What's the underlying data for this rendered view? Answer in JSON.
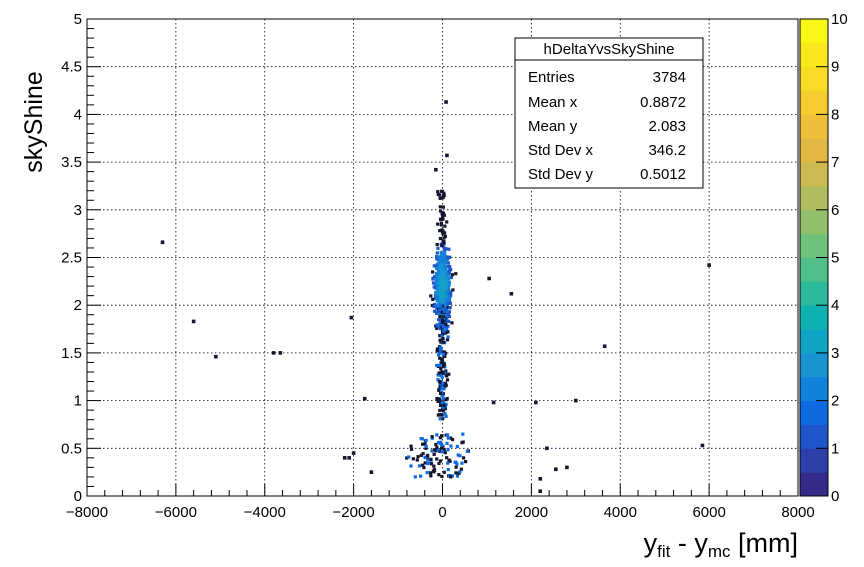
{
  "chart_data": {
    "type": "scatter",
    "title": "",
    "xlabel": {
      "main": "y",
      "sub1": "fit",
      "mid": " - y",
      "sub2": "mc",
      "unit": " [mm]"
    },
    "ylabel": "skyShine",
    "xlim": [
      -8000,
      8000
    ],
    "ylim": [
      0,
      5
    ],
    "zlim": [
      0,
      10
    ],
    "x_ticks": [
      -8000,
      -6000,
      -4000,
      -2000,
      0,
      2000,
      4000,
      6000,
      8000
    ],
    "y_ticks": [
      0,
      0.5,
      1,
      1.5,
      2,
      2.5,
      3,
      3.5,
      4,
      4.5,
      5
    ],
    "z_ticks": [
      0,
      1,
      2,
      3,
      4,
      5,
      6,
      7,
      8,
      9,
      10
    ],
    "x_tick_labels": [
      "−8000",
      "−6000",
      "−4000",
      "−2000",
      "0",
      "2000",
      "4000",
      "6000",
      "8000"
    ],
    "y_tick_labels": [
      "0",
      "0.5",
      "1",
      "1.5",
      "2",
      "2.5",
      "3",
      "3.5",
      "4",
      "4.5",
      "5"
    ],
    "z_tick_labels": [
      "0",
      "1",
      "2",
      "3",
      "4",
      "5",
      "6",
      "7",
      "8",
      "9",
      "10"
    ],
    "grid": true,
    "outliers": [
      {
        "x": -6300,
        "y": 2.66
      },
      {
        "x": -5600,
        "y": 1.83
      },
      {
        "x": -5100,
        "y": 1.46
      },
      {
        "x": -3800,
        "y": 1.5
      },
      {
        "x": -3650,
        "y": 1.5
      },
      {
        "x": -2050,
        "y": 1.87
      },
      {
        "x": -1750,
        "y": 1.02
      },
      {
        "x": 80,
        "y": 4.13
      },
      {
        "x": 100,
        "y": 3.57
      },
      {
        "x": -150,
        "y": 3.42
      },
      {
        "x": 1050,
        "y": 2.28
      },
      {
        "x": 1550,
        "y": 2.12
      },
      {
        "x": 1150,
        "y": 0.98
      },
      {
        "x": 2100,
        "y": 0.98
      },
      {
        "x": 3000,
        "y": 1.0
      },
      {
        "x": 3650,
        "y": 1.57
      },
      {
        "x": 6000,
        "y": 2.42
      },
      {
        "x": 5850,
        "y": 0.53
      },
      {
        "x": -2200,
        "y": 0.4
      },
      {
        "x": -2100,
        "y": 0.4
      },
      {
        "x": 2200,
        "y": 0.18
      },
      {
        "x": 2350,
        "y": 0.5
      },
      {
        "x": 2550,
        "y": 0.28
      },
      {
        "x": 2800,
        "y": 0.3
      },
      {
        "x": 2200,
        "y": 0.05
      },
      {
        "x": -2000,
        "y": 0.45
      },
      {
        "x": -1600,
        "y": 0.25
      }
    ],
    "stats_box": {
      "title": "hDeltaYvsSkyShine",
      "rows": [
        {
          "label": "Entries",
          "value": "3784"
        },
        {
          "label": "Mean x",
          "value": "0.8872"
        },
        {
          "label": "Mean y",
          "value": "2.083"
        },
        {
          "label": "Std Dev x",
          "value": "346.2"
        },
        {
          "label": "Std Dev y",
          "value": "0.5012"
        }
      ]
    },
    "palette": [
      "#352a87",
      "#2d3fa8",
      "#1f55c8",
      "#0d6ae0",
      "#1281d9",
      "#1a94d0",
      "#0fa4c4",
      "#0fb0b0",
      "#2bba9c",
      "#4fbf87",
      "#6fc27a",
      "#92bf6c",
      "#b1bc5f",
      "#ccb952",
      "#e2b744",
      "#f0bf3a",
      "#f7cc2e",
      "#f9da24",
      "#f9e81c",
      "#f9f715"
    ],
    "cell_color": "#16162e"
  }
}
